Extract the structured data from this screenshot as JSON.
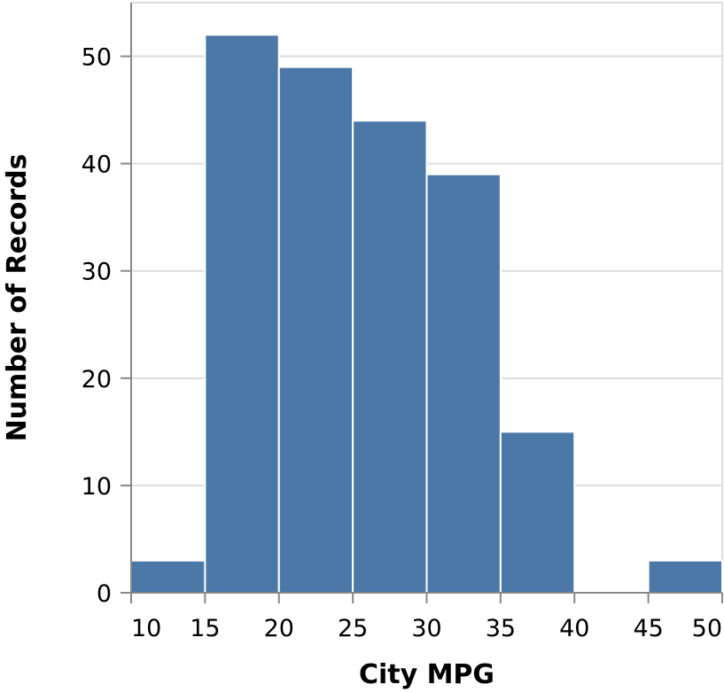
{
  "chart_data": {
    "type": "bar",
    "title": "",
    "xlabel": "City MPG",
    "ylabel": "Number of Records",
    "xlim": [
      10,
      50
    ],
    "ylim": [
      0,
      55
    ],
    "grid": true,
    "bar_color": "#4c78a8",
    "x_ticks": [
      10,
      15,
      20,
      25,
      30,
      35,
      40,
      45,
      50
    ],
    "y_ticks": [
      0,
      10,
      20,
      30,
      40,
      50
    ],
    "bins": [
      {
        "start": 10,
        "end": 15,
        "value": 3
      },
      {
        "start": 15,
        "end": 20,
        "value": 52
      },
      {
        "start": 20,
        "end": 25,
        "value": 49
      },
      {
        "start": 25,
        "end": 30,
        "value": 44
      },
      {
        "start": 30,
        "end": 35,
        "value": 39
      },
      {
        "start": 35,
        "end": 40,
        "value": 15
      },
      {
        "start": 40,
        "end": 45,
        "value": 0
      },
      {
        "start": 45,
        "end": 50,
        "value": 3
      }
    ]
  }
}
